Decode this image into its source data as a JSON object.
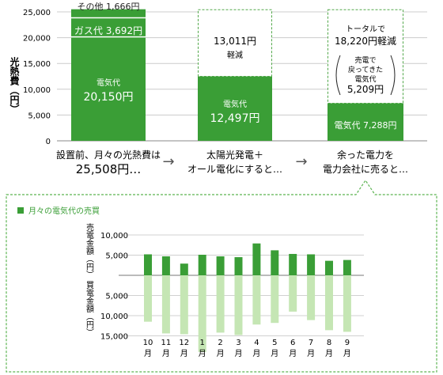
{
  "top_chart": {
    "type": "bar",
    "ylabel": "光熱費（円）",
    "ylim": [
      0,
      25000
    ],
    "yticks": [
      0,
      5000,
      10000,
      15000,
      20000,
      25000
    ],
    "ytick_labels": [
      "0",
      "5,000",
      "10,000",
      "15,000",
      "20,000",
      "25,000"
    ],
    "bars": [
      {
        "stack": [
          {
            "name": "電気代",
            "value": 20150,
            "label": "電気代",
            "value_label": "20,150円"
          },
          {
            "name": "ガス代",
            "value": 3692,
            "label": "ガス代 3,692円"
          },
          {
            "name": "その他",
            "value": 1666,
            "label": "その他 1,666円"
          }
        ],
        "caption_line1": "設置前、月々の光熱費は",
        "caption_line2": "25,508円…"
      },
      {
        "stack": [
          {
            "name": "電気代",
            "value": 12497,
            "label": "電気代",
            "value_label": "12,497円"
          },
          {
            "name": "軽減",
            "value": 13011,
            "label": "13,011円",
            "sublabel": "軽減",
            "dashed": true
          }
        ],
        "caption_line1": "太陽光発電＋",
        "caption_line2": "オール電化にすると…"
      },
      {
        "stack": [
          {
            "name": "電気代",
            "value": 7288,
            "label": "電気代 7,288円"
          },
          {
            "name": "軽減",
            "value": 18220,
            "label_line1": "トータルで",
            "label_line2": "18,220円軽減",
            "dashed": true
          }
        ],
        "sold_label_line1": "売電で",
        "sold_label_line2": "戻ってきた",
        "sold_label_line3": "電気代",
        "sold_label_line4": "5,209円",
        "caption_line1": "余った電力を",
        "caption_line2": "電力会社に売ると…"
      }
    ],
    "arrow": "→"
  },
  "chart_data": {
    "type": "bar",
    "title": "月々の電気代の売買",
    "categories": [
      "10月",
      "11月",
      "12月",
      "1月",
      "2月",
      "3月",
      "4月",
      "5月",
      "6月",
      "7月",
      "8月",
      "9月"
    ],
    "series": [
      {
        "name": "売電金額",
        "values": [
          5200,
          4700,
          2900,
          5100,
          4700,
          4500,
          7900,
          6200,
          5300,
          5200,
          3600,
          3800
        ]
      },
      {
        "name": "買電金額",
        "values": [
          -11500,
          -14400,
          -14600,
          -19000,
          -14200,
          -14800,
          -12200,
          -11800,
          -9000,
          -11100,
          -13600,
          -14000
        ]
      }
    ],
    "ylabel_top": "売電金額（円）",
    "ylabel_bottom": "買電金額（円）",
    "yticks_top": [
      "10,000",
      "5,000"
    ],
    "yticks_bottom": [
      "5,000",
      "10,000",
      "15,000"
    ],
    "ylim": [
      -20000,
      10000
    ],
    "colors": {
      "sell": "#3a9e36",
      "buy": "#c5e6b4"
    }
  },
  "colors": {
    "green": "#3a9e36",
    "dashed": "#52a84a",
    "accent": "#3a9e36"
  }
}
